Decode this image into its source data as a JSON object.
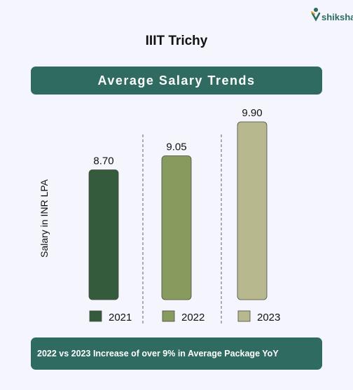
{
  "logo": {
    "text": "shiksha"
  },
  "header": {
    "title": "IIIT Trichy"
  },
  "banner_top": {
    "text": "Average Salary Trends"
  },
  "banner_bottom": {
    "text": "2022 vs 2023 Increase of over 9% in Average Package YoY"
  },
  "colors": {
    "banner": "#2f6b60",
    "background": "#f5f5fd",
    "bar_2021": "#345b3b",
    "bar_2022": "#889b5f",
    "bar_2023": "#b8b88f"
  },
  "chart_data": {
    "type": "bar",
    "title": "Average Salary Trends",
    "ylabel": "Salary in INR LPA",
    "xlabel": "",
    "categories": [
      "2021",
      "2022",
      "2023"
    ],
    "values": [
      8.7,
      9.05,
      9.9
    ],
    "value_labels": [
      "8.70",
      "9.05",
      "9.90"
    ],
    "colors": [
      "#345b3b",
      "#889b5f",
      "#b8b88f"
    ],
    "ylim": [
      0,
      9.9
    ],
    "grid": false,
    "legend": "bottom"
  }
}
